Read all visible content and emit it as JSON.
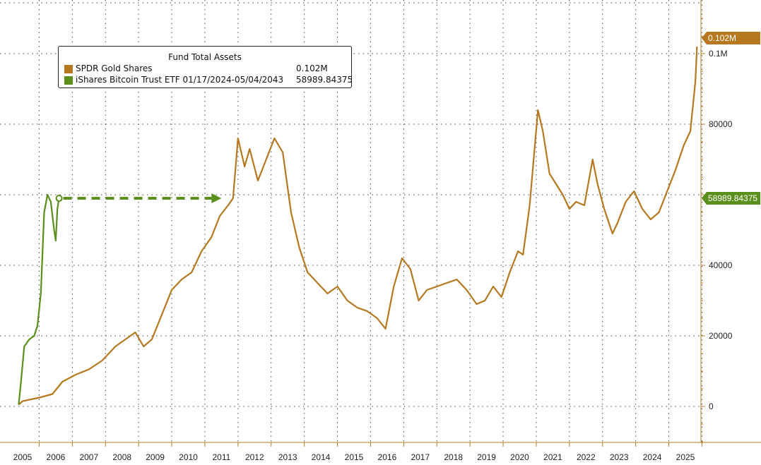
{
  "chart_data": {
    "type": "line",
    "title": "Fund Total Assets",
    "x_categories": [
      "2005",
      "2006",
      "2007",
      "2008",
      "2009",
      "2010",
      "2011",
      "2012",
      "2013",
      "2014",
      "2015",
      "2016",
      "2017",
      "2018",
      "2019",
      "2020",
      "2021",
      "2022",
      "2023",
      "2024",
      "2025"
    ],
    "y_ticks": [
      "0",
      "20000",
      "40000",
      "80000",
      "0.1M"
    ],
    "ylim": [
      -10000,
      115000
    ],
    "grid": true,
    "legend_position": "top-left",
    "series": [
      {
        "name": "SPDR Gold Shares",
        "legend_value": "0.102M",
        "end_label": "0.102M",
        "color": "#b5781e",
        "x": [
          2004.88,
          2005.0,
          2005.5,
          2005.9,
          2006.2,
          2006.6,
          2007.0,
          2007.4,
          2007.8,
          2008.1,
          2008.4,
          2008.65,
          2008.9,
          2009.2,
          2009.5,
          2009.8,
          2010.1,
          2010.4,
          2010.7,
          2010.95,
          2011.2,
          2011.35,
          2011.5,
          2011.7,
          2011.85,
          2012.1,
          2012.35,
          2012.6,
          2012.85,
          2013.1,
          2013.35,
          2013.6,
          2013.9,
          2014.2,
          2014.5,
          2014.8,
          2015.1,
          2015.4,
          2015.7,
          2015.95,
          2016.2,
          2016.45,
          2016.7,
          2016.95,
          2017.2,
          2017.5,
          2017.8,
          2018.1,
          2018.4,
          2018.7,
          2018.95,
          2019.2,
          2019.45,
          2019.7,
          2019.95,
          2020.1,
          2020.3,
          2020.55,
          2020.7,
          2020.9,
          2021.1,
          2021.3,
          2021.5,
          2021.7,
          2021.95,
          2022.2,
          2022.35,
          2022.55,
          2022.8,
          2022.95,
          2023.2,
          2023.45,
          2023.7,
          2023.95,
          2024.2,
          2024.45,
          2024.7,
          2024.95,
          2025.15,
          2025.3,
          2025.35
        ],
        "y": [
          500,
          1500,
          2500,
          3500,
          7000,
          9000,
          10500,
          13000,
          17000,
          19000,
          21000,
          17000,
          19000,
          26000,
          33000,
          36000,
          38000,
          44000,
          48000,
          54000,
          57000,
          59000,
          76000,
          68000,
          73000,
          64000,
          70000,
          76000,
          72000,
          55000,
          45000,
          38000,
          35000,
          32000,
          34000,
          30000,
          28000,
          27000,
          25000,
          22000,
          34000,
          42000,
          39000,
          30000,
          33000,
          34000,
          35000,
          36000,
          33000,
          29000,
          30000,
          34000,
          31000,
          38000,
          44000,
          43000,
          57000,
          84000,
          78000,
          66000,
          63000,
          60000,
          56000,
          58000,
          57000,
          70000,
          63000,
          56000,
          49000,
          52000,
          58000,
          61000,
          56000,
          53000,
          55000,
          61000,
          67000,
          74000,
          78000,
          92000,
          102000
        ]
      },
      {
        "name": "iShares Bitcoin Trust ETF 01/17/2024-05/04/2043",
        "legend_value": "58989.84375",
        "end_label": "58989.84375",
        "color": "#5a8f1c",
        "x": [
          2004.88,
          2004.95,
          2005.05,
          2005.2,
          2005.35,
          2005.45,
          2005.55,
          2005.65,
          2005.75,
          2005.85,
          2005.95,
          2006.0,
          2006.05,
          2006.1
        ],
        "y": [
          500,
          7000,
          17000,
          19000,
          20000,
          23000,
          32000,
          55000,
          60000,
          58000,
          50000,
          47000,
          56000,
          58990
        ]
      }
    ],
    "annotation": {
      "type": "dashed-arrow",
      "from_x": 2006.1,
      "to_x": 2011.0,
      "y": 58990,
      "color": "#5a8f1c"
    }
  }
}
